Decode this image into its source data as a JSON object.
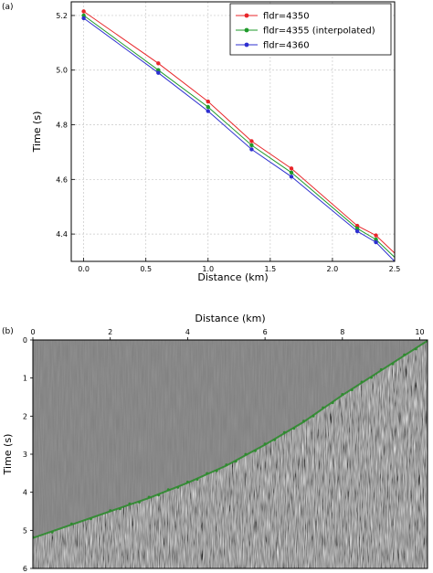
{
  "panels": {
    "a": "(a)",
    "b": "(b)"
  },
  "colors": {
    "series_4350": "#e8262a",
    "series_4355": "#1f9a2a",
    "series_4360": "#2d2fd0",
    "grid": "#c8c8c8",
    "pick_line": "#2e8b2e",
    "seismic_bg": "#7d7d7d"
  },
  "chart_data": [
    {
      "type": "line",
      "xlabel": "Distance (km)",
      "ylabel": "Time (s)",
      "xlim": [
        -0.1,
        2.5
      ],
      "ylim": [
        4.3,
        5.25
      ],
      "xticks": [
        "0.0",
        "0.5",
        "1.0",
        "1.5",
        "2.0",
        "2.5"
      ],
      "yticks": [
        "4.4",
        "4.6",
        "4.8",
        "5.0",
        "5.2"
      ],
      "grid": true,
      "legend": "top-right",
      "series": [
        {
          "name": "fldr=4350",
          "color": "#e8262a",
          "points": [
            [
              0.0,
              5.215
            ],
            [
              0.6,
              5.025
            ],
            [
              1.0,
              4.885
            ],
            [
              1.35,
              4.74
            ],
            [
              1.67,
              4.64
            ],
            [
              2.2,
              4.43
            ],
            [
              2.35,
              4.395
            ]
          ],
          "line_end": [
            2.5,
            4.33
          ]
        },
        {
          "name": "fldr=4355 (interpolated)",
          "color": "#1f9a2a",
          "points": [
            [
              0.0,
              5.2
            ],
            [
              0.6,
              5.0
            ],
            [
              1.0,
              4.865
            ],
            [
              1.35,
              4.725
            ],
            [
              1.67,
              4.625
            ],
            [
              2.2,
              4.42
            ],
            [
              2.35,
              4.38
            ]
          ],
          "line_end": [
            2.5,
            4.315
          ]
        },
        {
          "name": "fldr=4360",
          "color": "#2d2fd0",
          "points": [
            [
              0.0,
              5.19
            ],
            [
              0.6,
              4.99
            ],
            [
              1.0,
              4.85
            ],
            [
              1.35,
              4.71
            ],
            [
              1.67,
              4.61
            ],
            [
              2.2,
              4.41
            ],
            [
              2.35,
              4.37
            ]
          ],
          "line_end": [
            2.5,
            4.3
          ]
        }
      ]
    },
    {
      "type": "seismic_image",
      "xlabel": "Distance (km)",
      "ylabel": "Time (s)",
      "xlim": [
        0,
        10.2
      ],
      "ylim": [
        6,
        0
      ],
      "xticks": [
        "0",
        "2",
        "4",
        "6",
        "8",
        "10"
      ],
      "yticks": [
        "0",
        "1",
        "2",
        "3",
        "4",
        "5",
        "6"
      ],
      "first_break_pick": {
        "name": "",
        "x": [
          0,
          2,
          3,
          4,
          5,
          6,
          7,
          8,
          9,
          10.2
        ],
        "y": [
          5.2,
          4.5,
          4.15,
          3.75,
          3.3,
          2.75,
          2.15,
          1.45,
          0.8,
          0.02
        ]
      }
    }
  ]
}
